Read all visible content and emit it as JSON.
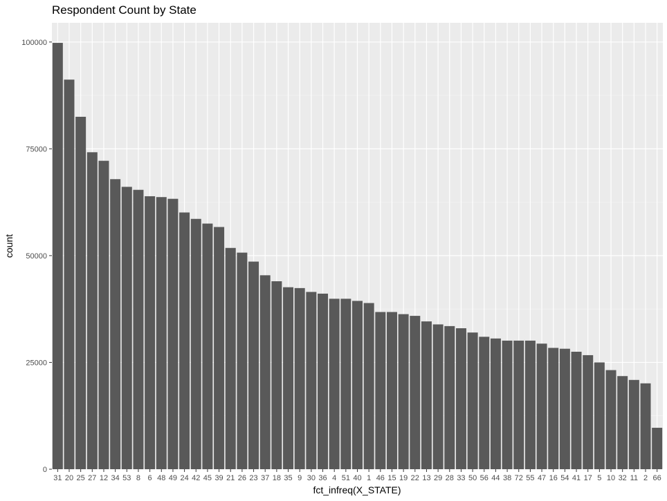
{
  "chart_data": {
    "type": "bar",
    "title": "Respondent Count by State",
    "xlabel": "fct_infreq(X_STATE)",
    "ylabel": "count",
    "ylim": [
      0,
      104500
    ],
    "yticks": [
      0,
      25000,
      50000,
      75000,
      100000
    ],
    "ytick_labels": [
      "0",
      "25000",
      "50000",
      "75000",
      "100000"
    ],
    "grid": true,
    "bar_color": "#595959",
    "panel_color": "#ebebeb",
    "categories": [
      "31",
      "20",
      "25",
      "27",
      "12",
      "34",
      "53",
      "8",
      "6",
      "48",
      "49",
      "24",
      "42",
      "45",
      "39",
      "21",
      "26",
      "23",
      "37",
      "18",
      "35",
      "9",
      "30",
      "36",
      "4",
      "51",
      "40",
      "1",
      "46",
      "15",
      "19",
      "22",
      "13",
      "29",
      "28",
      "33",
      "50",
      "56",
      "44",
      "38",
      "72",
      "55",
      "47",
      "16",
      "54",
      "41",
      "17",
      "5",
      "10",
      "32",
      "11",
      "2",
      "66"
    ],
    "values": [
      99800,
      91200,
      82500,
      74200,
      72200,
      67900,
      66100,
      65400,
      63900,
      63700,
      63300,
      60100,
      58600,
      57500,
      56700,
      51800,
      50700,
      48600,
      45400,
      44000,
      42600,
      42400,
      41500,
      41100,
      39900,
      39900,
      39400,
      38900,
      36800,
      36800,
      36300,
      35900,
      34600,
      33900,
      33500,
      33000,
      32000,
      31000,
      30600,
      30100,
      30100,
      30100,
      29400,
      28400,
      28200,
      27500,
      26700,
      25000,
      23200,
      21800,
      20900,
      20100,
      9700
    ]
  }
}
